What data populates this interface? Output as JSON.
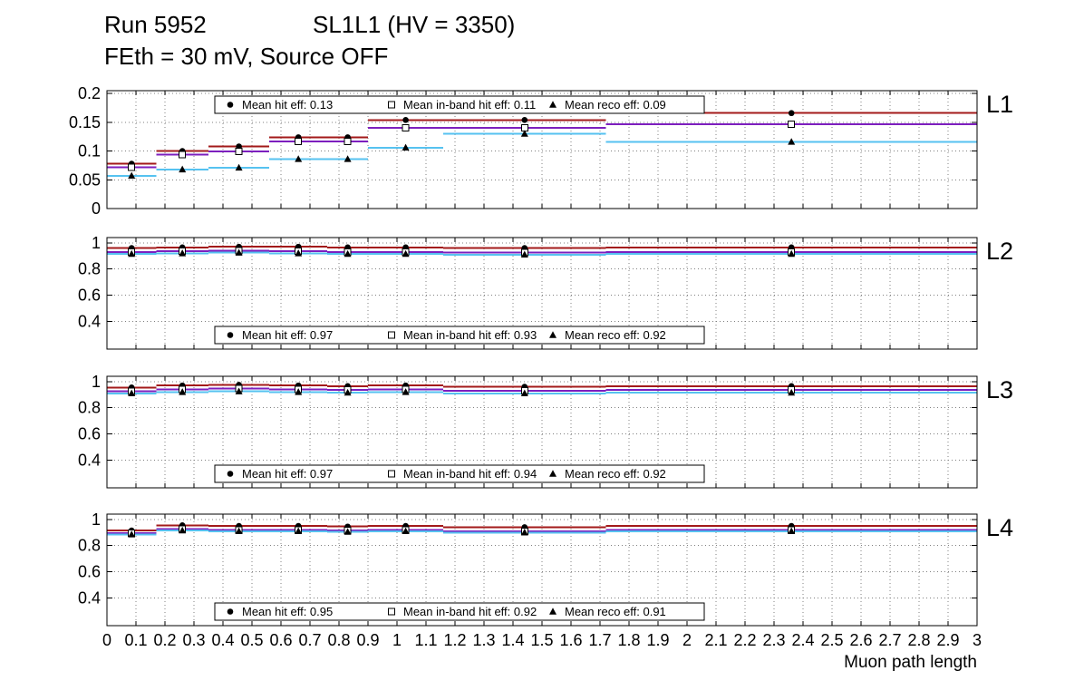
{
  "header": {
    "run": "Run 5952",
    "setup": "SL1L1 (HV = 3350)",
    "conditions": "FEth = 30 mV, Source OFF"
  },
  "axes": {
    "x_title": "Muon path length",
    "x_range": [
      0,
      3
    ],
    "x_tick_step": 0.1,
    "x_tick_labels": [
      "0",
      "0.1",
      "0.2",
      "0.3",
      "0.4",
      "0.5",
      "0.6",
      "0.7",
      "0.8",
      "0.9",
      "1",
      "1.1",
      "1.2",
      "1.3",
      "1.4",
      "1.5",
      "1.6",
      "1.7",
      "1.8",
      "1.9",
      "2",
      "2.1",
      "2.2",
      "2.3",
      "2.4",
      "2.5",
      "2.6",
      "2.7",
      "2.8",
      "2.9",
      "3"
    ]
  },
  "colors": {
    "hit": "#a31a1a",
    "inband": "#7d1fbe",
    "reco": "#56c2f0",
    "marker": "#000000",
    "grid": "#808080"
  },
  "chart_data": [
    {
      "type": "line",
      "panel_label": "L1",
      "ylim": [
        0,
        0.205
      ],
      "yticks": [
        0,
        0.05,
        0.1,
        0.15,
        0.2
      ],
      "ytick_labels": [
        "0",
        "0.05",
        "0.1",
        "0.15",
        "0.2"
      ],
      "marker_error": 0.004,
      "legend": {
        "position": "top",
        "entries": [
          {
            "marker": "circle",
            "label": "Mean hit  eff: 0.13"
          },
          {
            "marker": "square",
            "label": "Mean in-band hit eff: 0.11"
          },
          {
            "marker": "triangle",
            "label": "Mean reco eff: 0.09"
          }
        ]
      },
      "bin_edges": [
        0,
        0.17,
        0.35,
        0.56,
        0.76,
        0.9,
        1.16,
        1.72,
        3
      ],
      "series": [
        {
          "name": "hit",
          "marker": "circle",
          "color": "hit",
          "values": [
            0.078,
            0.1,
            0.108,
            0.124,
            0.124,
            0.154,
            0.154,
            0.166
          ]
        },
        {
          "name": "inband",
          "marker": "square",
          "color": "inband",
          "values": [
            0.072,
            0.094,
            0.099,
            0.117,
            0.117,
            0.14,
            0.14,
            0.147
          ]
        },
        {
          "name": "reco",
          "marker": "triangle",
          "color": "reco",
          "values": [
            0.057,
            0.068,
            0.071,
            0.086,
            0.086,
            0.106,
            0.13,
            0.116
          ]
        }
      ]
    },
    {
      "type": "line",
      "panel_label": "L2",
      "ylim": [
        0.19,
        1.04
      ],
      "yticks": [
        0.4,
        0.6,
        0.8,
        1
      ],
      "ytick_labels": [
        "0.4",
        "0.6",
        "0.8",
        "1"
      ],
      "marker_error": 0.012,
      "legend": {
        "position": "bottom",
        "entries": [
          {
            "marker": "circle",
            "label": "Mean hit  eff: 0.97"
          },
          {
            "marker": "square",
            "label": "Mean in-band hit eff: 0.93"
          },
          {
            "marker": "triangle",
            "label": "Mean reco eff: 0.92"
          }
        ]
      },
      "bin_edges": [
        0,
        0.17,
        0.35,
        0.56,
        0.76,
        0.9,
        1.16,
        1.72,
        3
      ],
      "series": [
        {
          "name": "hit",
          "marker": "circle",
          "color": "hit",
          "values": [
            0.96,
            0.965,
            0.97,
            0.97,
            0.965,
            0.965,
            0.96,
            0.965
          ]
        },
        {
          "name": "inband",
          "marker": "square",
          "color": "inband",
          "values": [
            0.93,
            0.935,
            0.94,
            0.935,
            0.93,
            0.93,
            0.925,
            0.93
          ]
        },
        {
          "name": "reco",
          "marker": "triangle",
          "color": "reco",
          "values": [
            0.915,
            0.92,
            0.925,
            0.92,
            0.915,
            0.915,
            0.91,
            0.915
          ]
        }
      ]
    },
    {
      "type": "line",
      "panel_label": "L3",
      "ylim": [
        0.19,
        1.04
      ],
      "yticks": [
        0.4,
        0.6,
        0.8,
        1
      ],
      "ytick_labels": [
        "0.4",
        "0.6",
        "0.8",
        "1"
      ],
      "marker_error": 0.012,
      "legend": {
        "position": "bottom",
        "entries": [
          {
            "marker": "circle",
            "label": "Mean hit  eff: 0.97"
          },
          {
            "marker": "square",
            "label": "Mean in-band hit eff: 0.94"
          },
          {
            "marker": "triangle",
            "label": "Mean reco eff: 0.92"
          }
        ]
      },
      "bin_edges": [
        0,
        0.17,
        0.35,
        0.56,
        0.76,
        0.9,
        1.16,
        1.72,
        3
      ],
      "series": [
        {
          "name": "hit",
          "marker": "circle",
          "color": "hit",
          "values": [
            0.955,
            0.97,
            0.975,
            0.97,
            0.965,
            0.97,
            0.96,
            0.965
          ]
        },
        {
          "name": "inband",
          "marker": "square",
          "color": "inband",
          "values": [
            0.925,
            0.94,
            0.945,
            0.94,
            0.935,
            0.94,
            0.93,
            0.935
          ]
        },
        {
          "name": "reco",
          "marker": "triangle",
          "color": "reco",
          "values": [
            0.91,
            0.92,
            0.925,
            0.92,
            0.915,
            0.92,
            0.91,
            0.915
          ]
        }
      ]
    },
    {
      "type": "line",
      "panel_label": "L4",
      "ylim": [
        0.19,
        1.04
      ],
      "yticks": [
        0.4,
        0.6,
        0.8,
        1
      ],
      "ytick_labels": [
        "0.4",
        "0.6",
        "0.8",
        "1"
      ],
      "marker_error": 0.012,
      "legend": {
        "position": "bottom",
        "entries": [
          {
            "marker": "circle",
            "label": "Mean hit  eff: 0.95"
          },
          {
            "marker": "square",
            "label": "Mean in-band hit eff: 0.92"
          },
          {
            "marker": "triangle",
            "label": "Mean reco eff: 0.91"
          }
        ]
      },
      "bin_edges": [
        0,
        0.17,
        0.35,
        0.56,
        0.76,
        0.9,
        1.16,
        1.72,
        3
      ],
      "series": [
        {
          "name": "hit",
          "marker": "circle",
          "color": "hit",
          "values": [
            0.915,
            0.955,
            0.95,
            0.95,
            0.945,
            0.95,
            0.94,
            0.95
          ]
        },
        {
          "name": "inband",
          "marker": "square",
          "color": "inband",
          "values": [
            0.895,
            0.925,
            0.92,
            0.92,
            0.915,
            0.92,
            0.91,
            0.92
          ]
        },
        {
          "name": "reco",
          "marker": "triangle",
          "color": "reco",
          "values": [
            0.885,
            0.915,
            0.91,
            0.91,
            0.905,
            0.91,
            0.9,
            0.91
          ]
        }
      ]
    }
  ]
}
